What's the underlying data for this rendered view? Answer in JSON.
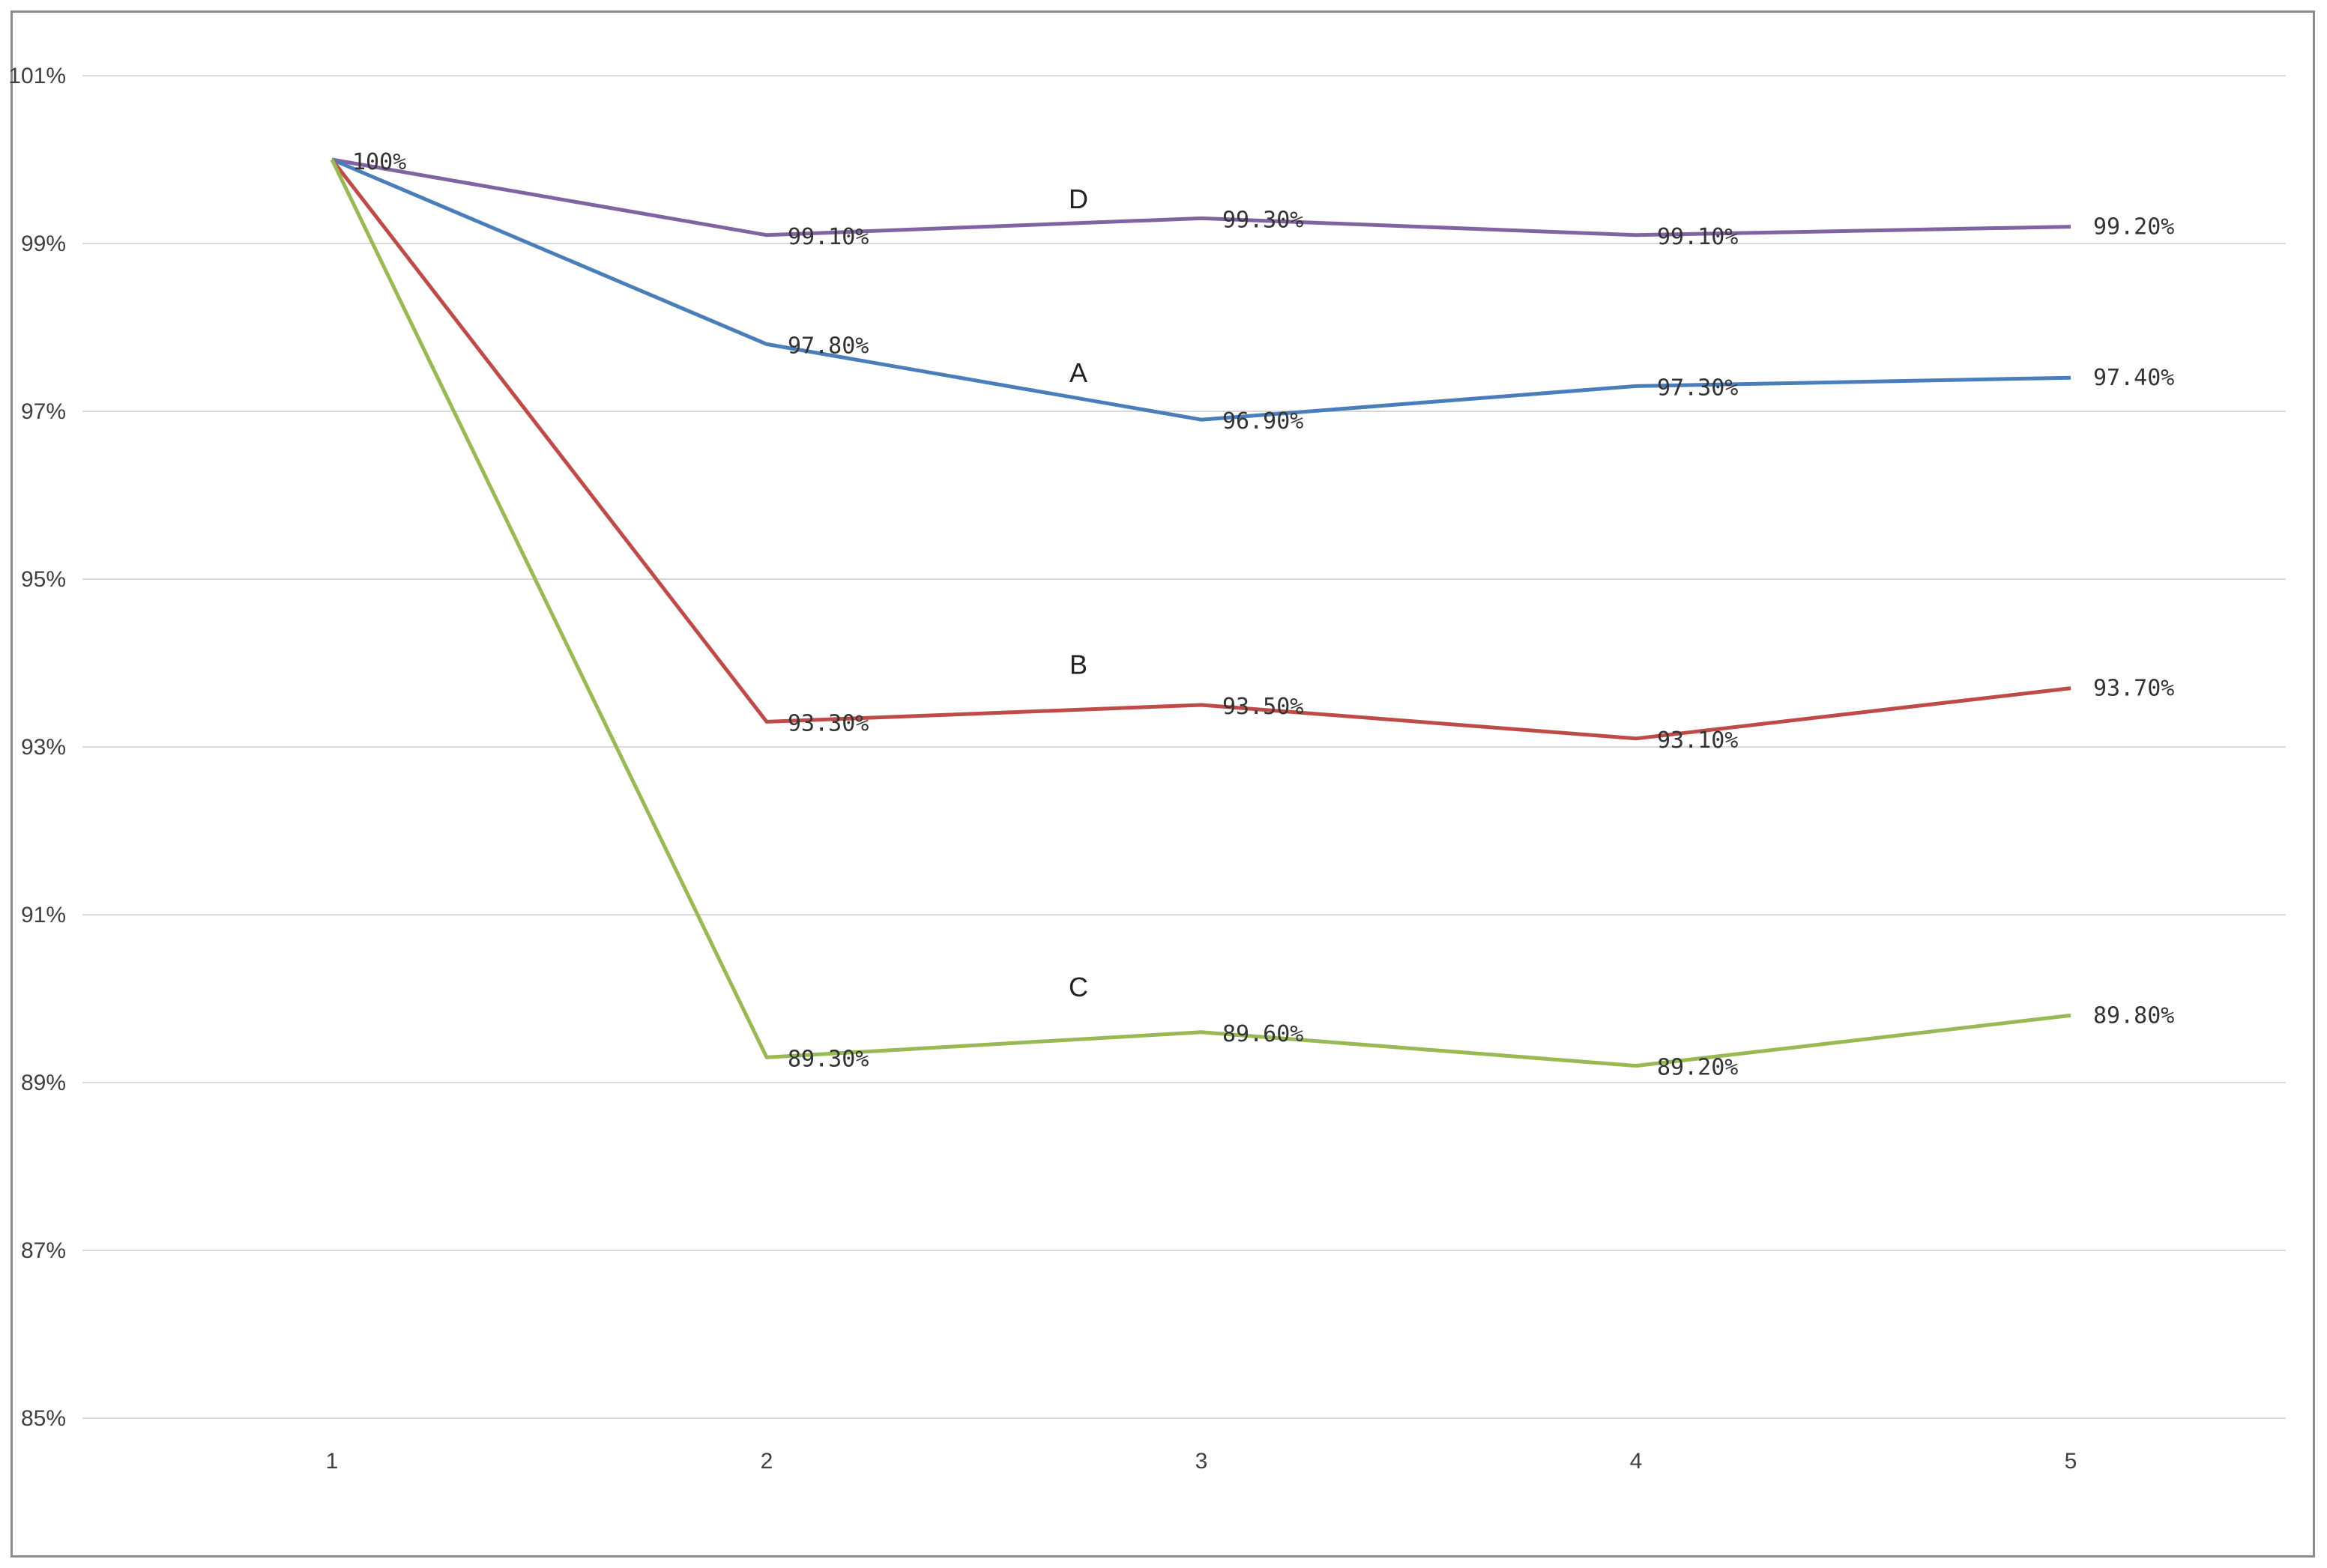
{
  "chart_data": {
    "type": "line",
    "x": [
      1,
      2,
      3,
      4,
      5
    ],
    "categories": [
      "1",
      "2",
      "3",
      "4",
      "5"
    ],
    "ylim": [
      85,
      101
    ],
    "yticks": [
      85,
      87,
      89,
      91,
      93,
      95,
      97,
      99,
      101
    ],
    "ytick_labels": [
      "85%",
      "87%",
      "89%",
      "91%",
      "93%",
      "95%",
      "97%",
      "99%",
      "101%"
    ],
    "grid": "horizontal",
    "legend": "none",
    "title": "",
    "xlabel": "",
    "ylabel": "",
    "series": [
      {
        "name": "D",
        "color": "#8064a2",
        "values": [
          100,
          99.1,
          99.3,
          99.1,
          99.2
        ],
        "labels": [
          "",
          "99.10%",
          "99.30%",
          "99.10%",
          "99.20%"
        ]
      },
      {
        "name": "A",
        "color": "#4a7ebb",
        "values": [
          100,
          97.8,
          96.9,
          97.3,
          97.4
        ],
        "labels": [
          "",
          "97.80%",
          "96.90%",
          "97.30%",
          "97.40%"
        ]
      },
      {
        "name": "B",
        "color": "#be4b48",
        "values": [
          100,
          93.3,
          93.5,
          93.1,
          93.7
        ],
        "labels": [
          "",
          "93.30%",
          "93.50%",
          "93.10%",
          "93.70%"
        ]
      },
      {
        "name": "C",
        "color": "#98b954",
        "values": [
          100,
          89.3,
          89.6,
          89.2,
          89.8
        ],
        "labels": [
          "",
          "89.30%",
          "89.60%",
          "89.20%",
          "89.80%"
        ]
      }
    ],
    "start_label": "100%"
  }
}
